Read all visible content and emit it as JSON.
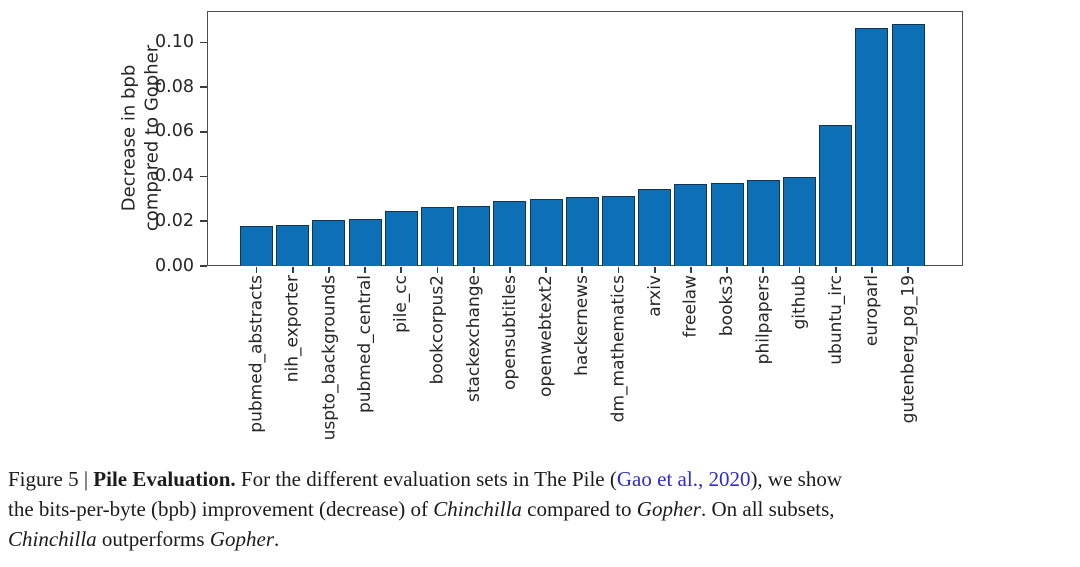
{
  "chart_data": {
    "type": "bar",
    "title": "",
    "xlabel": "",
    "ylabel_lines": [
      "Decrease in bpb",
      "compared to Gopher"
    ],
    "categories": [
      "pubmed_abstracts",
      "nih_exporter",
      "uspto_backgrounds",
      "pubmed_central",
      "pile_cc",
      "bookcorpus2",
      "stackexchange",
      "opensubtitles",
      "openwebtext2",
      "hackernews",
      "dm_mathematics",
      "arxiv",
      "freelaw",
      "books3",
      "philpapers",
      "github",
      "ubuntu_irc",
      "europarl",
      "gutenberg_pg_19"
    ],
    "values": [
      0.018,
      0.0185,
      0.0205,
      0.021,
      0.0245,
      0.0265,
      0.027,
      0.029,
      0.03,
      0.031,
      0.0315,
      0.0345,
      0.0365,
      0.037,
      0.0385,
      0.04,
      0.063,
      0.1065,
      0.1085
    ],
    "ylim": [
      0,
      0.114
    ],
    "yticks": [
      0,
      0.02,
      0.04,
      0.06,
      0.08,
      0.1
    ],
    "ytick_labels": [
      "0.00",
      "0.02",
      "0.04",
      "0.06",
      "0.08",
      "0.10"
    ],
    "grid": false,
    "legend": "none",
    "bar_color": "#0d6fb5",
    "bar_edge_color": "#16344f",
    "axis_color": "#4d4d4d"
  },
  "caption": {
    "link_color": "#2d2dc8",
    "lines": [
      [
        {
          "text": "Figure 5 | ",
          "style": ""
        },
        {
          "text": "Pile Evaluation.",
          "style": "bold"
        },
        {
          "text": " For the different evaluation sets in The Pile (",
          "style": ""
        },
        {
          "text": "Gao et al., 2020",
          "style": "link"
        },
        {
          "text": "), we show",
          "style": ""
        }
      ],
      [
        {
          "text": "the bits-per-byte (bpb) improvement (decrease) of ",
          "style": ""
        },
        {
          "text": "Chinchilla",
          "style": "italic"
        },
        {
          "text": " compared to ",
          "style": ""
        },
        {
          "text": "Gopher",
          "style": "italic"
        },
        {
          "text": ". On all subsets,",
          "style": ""
        }
      ],
      [
        {
          "text": "Chinchilla",
          "style": "italic"
        },
        {
          "text": " outperforms ",
          "style": ""
        },
        {
          "text": "Gopher",
          "style": "italic"
        },
        {
          "text": ".",
          "style": ""
        }
      ]
    ]
  }
}
